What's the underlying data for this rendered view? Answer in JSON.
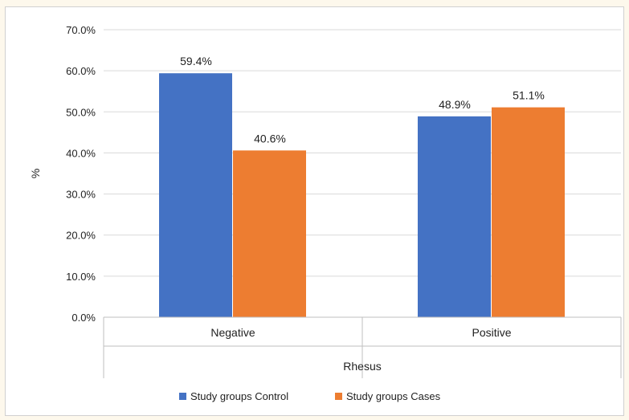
{
  "chart_data": {
    "type": "bar",
    "categories": [
      "Negative",
      "Positive"
    ],
    "series": [
      {
        "name": "Study groups Control",
        "values": [
          59.4,
          48.9
        ],
        "labels": [
          "59.4%",
          "48.9%"
        ],
        "color": "#4472c4"
      },
      {
        "name": "Study groups Cases",
        "values": [
          40.6,
          51.1
        ],
        "labels": [
          "40.6%",
          "51.1%"
        ],
        "color": "#ed7d31"
      }
    ],
    "ylim": [
      0,
      70
    ],
    "yticks": [
      "0.0%",
      "10.0%",
      "20.0%",
      "30.0%",
      "40.0%",
      "50.0%",
      "60.0%",
      "70.0%"
    ],
    "xlabel": "Rhesus",
    "ylabel": "%",
    "grid": true,
    "legend": "bottom"
  }
}
